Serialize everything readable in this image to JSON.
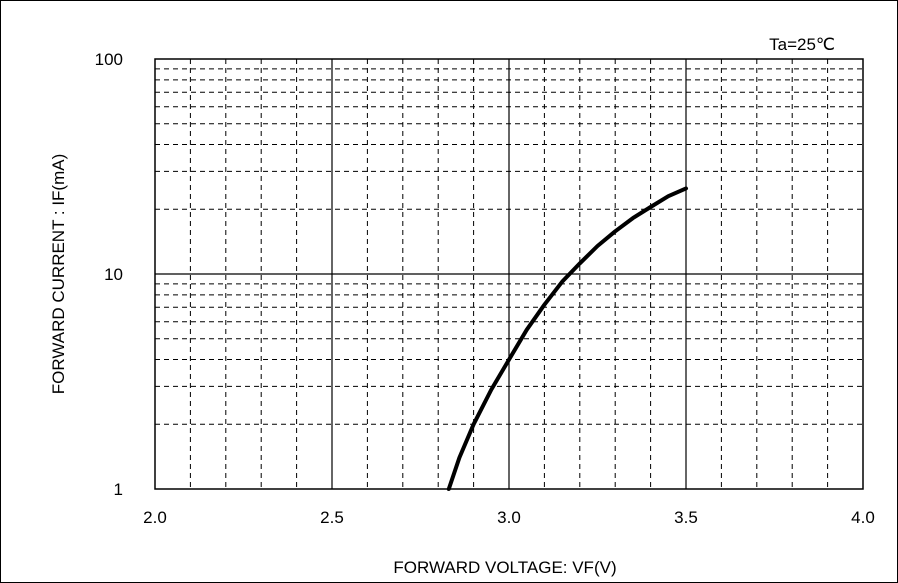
{
  "chart_data": {
    "type": "line",
    "title": "",
    "annotation": "Ta=25℃",
    "xlabel": "FORWARD VOLTAGE: VF(V)",
    "ylabel": "FORWARD CURRENT : IF(mA)",
    "xlim": [
      2.0,
      4.0
    ],
    "ylim": [
      1,
      100
    ],
    "y_scale": "log",
    "grid": true,
    "x_ticks": [
      "2.0",
      "2.5",
      "3.0",
      "3.5",
      "4.0"
    ],
    "y_ticks": [
      "1",
      "10",
      "100"
    ],
    "series": [
      {
        "x": [
          2.83,
          2.86,
          2.9,
          2.95,
          3.0,
          3.05,
          3.1,
          3.15,
          3.2,
          3.25,
          3.3,
          3.35,
          3.4,
          3.45,
          3.5
        ],
        "y": [
          1.0,
          1.4,
          2.0,
          2.9,
          4.0,
          5.5,
          7.2,
          9.2,
          11.2,
          13.5,
          15.8,
          18.2,
          20.5,
          23.0,
          25.0
        ]
      }
    ]
  },
  "colors": {
    "curve": "#000000",
    "grid": "#000000",
    "background": "#ffffff"
  }
}
